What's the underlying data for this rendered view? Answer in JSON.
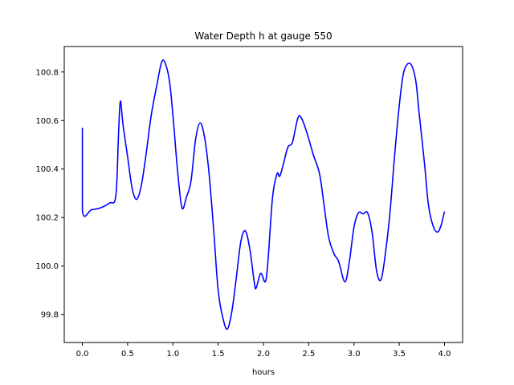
{
  "chart_data": {
    "type": "line",
    "title": "Water Depth h at gauge 550",
    "xlabel": "hours",
    "ylabel": "",
    "xlim": [
      -0.2,
      4.2
    ],
    "ylim": [
      99.685,
      100.905
    ],
    "xticks": [
      0.0,
      0.5,
      1.0,
      1.5,
      2.0,
      2.5,
      3.0,
      3.5,
      4.0
    ],
    "xtick_labels": [
      "0.0",
      "0.5",
      "1.0",
      "1.5",
      "2.0",
      "2.5",
      "3.0",
      "3.5",
      "4.0"
    ],
    "yticks": [
      99.8,
      100.0,
      100.2,
      100.4,
      100.6,
      100.8
    ],
    "ytick_labels": [
      "99.8",
      "100.0",
      "100.2",
      "100.4",
      "100.6",
      "100.8"
    ],
    "grid": false,
    "legend": "none",
    "series": [
      {
        "color": "#0000ff",
        "points": [
          [
            0.0,
            100.57
          ],
          [
            0.0,
            100.23
          ],
          [
            0.1,
            100.232
          ],
          [
            0.2,
            100.24
          ],
          [
            0.3,
            100.26
          ],
          [
            0.37,
            100.29
          ],
          [
            0.4,
            100.55
          ],
          [
            0.42,
            100.68
          ],
          [
            0.45,
            100.58
          ],
          [
            0.5,
            100.45
          ],
          [
            0.55,
            100.32
          ],
          [
            0.6,
            100.275
          ],
          [
            0.65,
            100.33
          ],
          [
            0.7,
            100.45
          ],
          [
            0.76,
            100.62
          ],
          [
            0.82,
            100.74
          ],
          [
            0.88,
            100.845
          ],
          [
            0.93,
            100.82
          ],
          [
            0.97,
            100.74
          ],
          [
            1.01,
            100.58
          ],
          [
            1.05,
            100.4
          ],
          [
            1.1,
            100.24
          ],
          [
            1.15,
            100.285
          ],
          [
            1.2,
            100.35
          ],
          [
            1.25,
            100.52
          ],
          [
            1.3,
            100.59
          ],
          [
            1.35,
            100.53
          ],
          [
            1.4,
            100.38
          ],
          [
            1.45,
            100.15
          ],
          [
            1.5,
            99.9
          ],
          [
            1.55,
            99.79
          ],
          [
            1.6,
            99.74
          ],
          [
            1.65,
            99.81
          ],
          [
            1.7,
            99.95
          ],
          [
            1.75,
            100.1
          ],
          [
            1.8,
            100.145
          ],
          [
            1.85,
            100.07
          ],
          [
            1.9,
            99.93
          ],
          [
            1.92,
            99.91
          ],
          [
            1.97,
            99.97
          ],
          [
            2.02,
            99.935
          ],
          [
            2.05,
            100.02
          ],
          [
            2.1,
            100.28
          ],
          [
            2.15,
            100.38
          ],
          [
            2.18,
            100.37
          ],
          [
            2.22,
            100.42
          ],
          [
            2.27,
            100.49
          ],
          [
            2.32,
            100.51
          ],
          [
            2.38,
            100.61
          ],
          [
            2.42,
            100.61
          ],
          [
            2.48,
            100.55
          ],
          [
            2.55,
            100.46
          ],
          [
            2.62,
            100.38
          ],
          [
            2.67,
            100.25
          ],
          [
            2.72,
            100.12
          ],
          [
            2.78,
            100.05
          ],
          [
            2.83,
            100.02
          ],
          [
            2.9,
            99.935
          ],
          [
            2.95,
            100.02
          ],
          [
            3.0,
            100.16
          ],
          [
            3.05,
            100.22
          ],
          [
            3.1,
            100.215
          ],
          [
            3.15,
            100.22
          ],
          [
            3.2,
            100.14
          ],
          [
            3.25,
            99.98
          ],
          [
            3.3,
            99.945
          ],
          [
            3.35,
            100.06
          ],
          [
            3.4,
            100.23
          ],
          [
            3.45,
            100.46
          ],
          [
            3.5,
            100.66
          ],
          [
            3.55,
            100.8
          ],
          [
            3.62,
            100.835
          ],
          [
            3.68,
            100.77
          ],
          [
            3.72,
            100.63
          ],
          [
            3.78,
            100.42
          ],
          [
            3.82,
            100.26
          ],
          [
            3.87,
            100.17
          ],
          [
            3.92,
            100.14
          ],
          [
            3.96,
            100.165
          ],
          [
            4.0,
            100.225
          ]
        ]
      }
    ]
  }
}
